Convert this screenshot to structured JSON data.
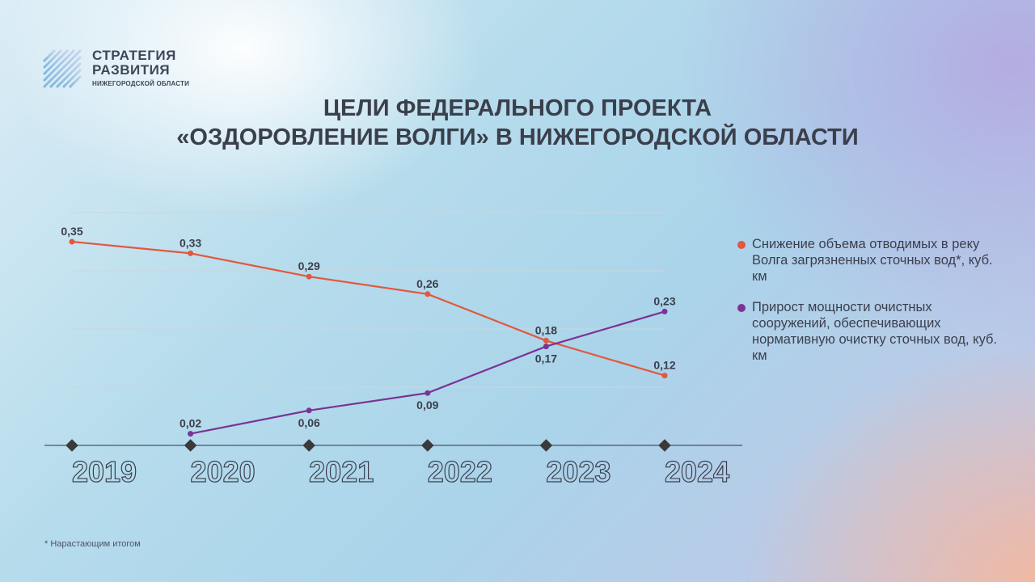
{
  "logo": {
    "line1": "СТРАТЕГИЯ",
    "line2": "РАЗВИТИЯ",
    "line3": "НИЖЕГОРОДСКОЙ ОБЛАСТИ"
  },
  "title": {
    "line1": "ЦЕЛИ ФЕДЕРАЛЬНОГО ПРОЕКТА",
    "line2": "«ОЗДОРОВЛЕНИЕ ВОЛГИ» В НИЖЕГОРОДСКОЙ ОБЛАСТИ"
  },
  "colors": {
    "series1": "#e2583e",
    "series2": "#7b3394",
    "marker": "#3a3a3a",
    "text": "#3b3f4c"
  },
  "chart_data": {
    "type": "line",
    "categories": [
      "2019",
      "2020",
      "2021",
      "2022",
      "2023",
      "2024"
    ],
    "ylim": [
      0,
      0.4
    ],
    "grid": true,
    "legend": "right",
    "series": [
      {
        "name": "Снижение объема отводимых в реку Волга загрязненных сточных вод*, куб. км",
        "values": [
          0.35,
          0.33,
          0.29,
          0.26,
          0.18,
          0.12
        ],
        "labels": [
          "0,35",
          "0,33",
          "0,29",
          "0,26",
          "0,18",
          "0,12"
        ]
      },
      {
        "name": "Прирост мощности очистных сооружений, обеспечивающих нормативную очистку сточных вод, куб. км",
        "values": [
          null,
          0.02,
          0.06,
          0.09,
          0.17,
          0.23
        ],
        "labels": [
          "",
          "0,02",
          "0,06",
          "0,09",
          "0,17",
          "0,23"
        ]
      }
    ]
  },
  "footnote": "* Нарастающим итогом"
}
